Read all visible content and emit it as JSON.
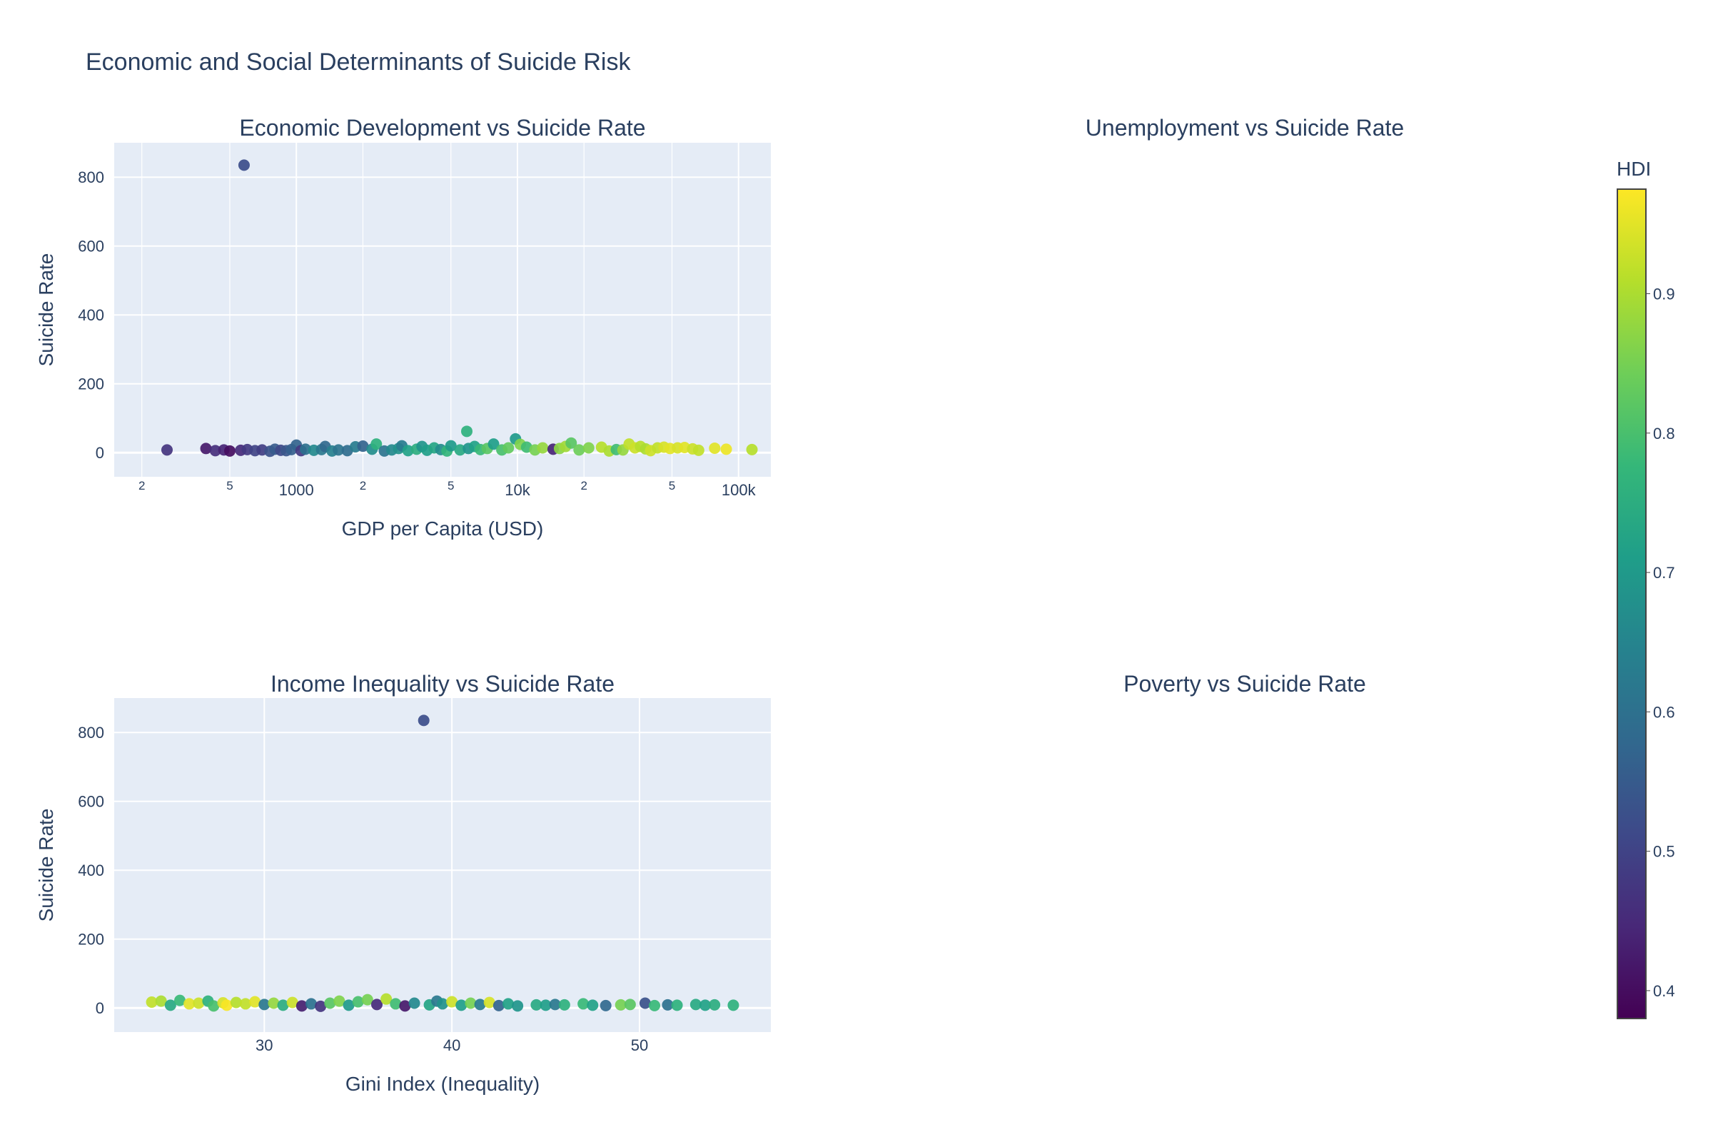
{
  "figure_title": "Economic and Social Determinants of Suicide Risk",
  "colorbar": {
    "title": "HDI",
    "min": 0.38,
    "max": 0.975,
    "ticks": [
      0.4,
      0.5,
      0.6,
      0.7,
      0.8,
      0.9
    ],
    "tick_labels": [
      "0.4",
      "0.5",
      "0.6",
      "0.7",
      "0.8",
      "0.9"
    ],
    "colorscale": [
      "#440154",
      "#482878",
      "#3e4989",
      "#31688e",
      "#26828e",
      "#1f9e89",
      "#35b779",
      "#6ece58",
      "#b5de2b",
      "#fde725"
    ]
  },
  "colors": {
    "plot_bg": "#e5ecf6",
    "grid": "#ffffff",
    "text": "#2a3f5f"
  },
  "chart_data": [
    {
      "id": "gdp",
      "type": "scatter",
      "title": "Economic Development vs Suicide Rate",
      "xlabel": "GDP per Capita (USD)",
      "ylabel": "Suicide Rate",
      "x_scale": "log",
      "xlim": [
        150,
        140000
      ],
      "ylim": [
        -70,
        900
      ],
      "y_ticks": [
        0,
        200,
        400,
        600,
        800
      ],
      "y_tick_labels": [
        "0",
        "200",
        "400",
        "600",
        "800"
      ],
      "x_major_ticks": [
        1000,
        10000,
        100000
      ],
      "x_major_labels": [
        "1000",
        "10k",
        "100k"
      ],
      "x_minor_ticks": [
        200,
        500,
        2000,
        5000,
        20000,
        50000
      ],
      "x_minor_labels": [
        "2",
        "5",
        "2",
        "5",
        "2",
        "5"
      ],
      "points": [
        [
          260,
          8,
          0.47
        ],
        [
          390,
          12,
          0.42
        ],
        [
          430,
          6,
          0.46
        ],
        [
          470,
          8,
          0.44
        ],
        [
          500,
          5,
          0.4
        ],
        [
          560,
          7,
          0.45
        ],
        [
          580,
          835,
          0.52
        ],
        [
          600,
          9,
          0.48
        ],
        [
          650,
          6,
          0.5
        ],
        [
          700,
          8,
          0.49
        ],
        [
          760,
          4,
          0.53
        ],
        [
          800,
          10,
          0.55
        ],
        [
          850,
          7,
          0.51
        ],
        [
          900,
          6,
          0.54
        ],
        [
          950,
          9,
          0.56
        ],
        [
          1000,
          22,
          0.57
        ],
        [
          1050,
          6,
          0.48
        ],
        [
          1100,
          10,
          0.6
        ],
        [
          1200,
          7,
          0.66
        ],
        [
          1300,
          9,
          0.62
        ],
        [
          1350,
          18,
          0.58
        ],
        [
          1450,
          5,
          0.64
        ],
        [
          1550,
          8,
          0.61
        ],
        [
          1700,
          6,
          0.59
        ],
        [
          1850,
          17,
          0.63
        ],
        [
          2000,
          19,
          0.57
        ],
        [
          2200,
          10,
          0.67
        ],
        [
          2300,
          25,
          0.76
        ],
        [
          2500,
          5,
          0.61
        ],
        [
          2700,
          8,
          0.66
        ],
        [
          2900,
          12,
          0.68
        ],
        [
          3000,
          20,
          0.63
        ],
        [
          3200,
          6,
          0.72
        ],
        [
          3500,
          10,
          0.75
        ],
        [
          3700,
          18,
          0.69
        ],
        [
          3900,
          7,
          0.71
        ],
        [
          4200,
          14,
          0.73
        ],
        [
          4500,
          9,
          0.67
        ],
        [
          4800,
          5,
          0.77
        ],
        [
          5000,
          20,
          0.7
        ],
        [
          5500,
          8,
          0.74
        ],
        [
          5900,
          62,
          0.76
        ],
        [
          6000,
          12,
          0.69
        ],
        [
          6400,
          18,
          0.72
        ],
        [
          6800,
          9,
          0.78
        ],
        [
          7300,
          12,
          0.82
        ],
        [
          7800,
          25,
          0.71
        ],
        [
          8500,
          8,
          0.8
        ],
        [
          9100,
          14,
          0.83
        ],
        [
          9800,
          40,
          0.7
        ],
        [
          10300,
          24,
          0.86
        ],
        [
          11000,
          16,
          0.79
        ],
        [
          12000,
          8,
          0.85
        ],
        [
          13000,
          14,
          0.88
        ],
        [
          14500,
          10,
          0.44
        ],
        [
          15500,
          12,
          0.87
        ],
        [
          16500,
          18,
          0.89
        ],
        [
          17500,
          28,
          0.82
        ],
        [
          19000,
          8,
          0.84
        ],
        [
          21000,
          14,
          0.86
        ],
        [
          24000,
          16,
          0.91
        ],
        [
          26000,
          5,
          0.9
        ],
        [
          28000,
          9,
          0.79
        ],
        [
          30000,
          8,
          0.88
        ],
        [
          32000,
          25,
          0.92
        ],
        [
          34000,
          14,
          0.93
        ],
        [
          36000,
          18,
          0.91
        ],
        [
          38000,
          11,
          0.9
        ],
        [
          40000,
          6,
          0.93
        ],
        [
          43000,
          14,
          0.92
        ],
        [
          46000,
          16,
          0.94
        ],
        [
          49000,
          12,
          0.95
        ],
        [
          53000,
          14,
          0.94
        ],
        [
          57000,
          15,
          0.95
        ],
        [
          62000,
          11,
          0.93
        ],
        [
          66000,
          7,
          0.92
        ],
        [
          78000,
          13,
          0.95
        ],
        [
          88000,
          10,
          0.96
        ],
        [
          115000,
          9,
          0.91
        ]
      ]
    },
    {
      "id": "gini",
      "type": "scatter",
      "title": "Income Inequality vs Suicide Rate",
      "xlabel": "Gini Index (Inequality)",
      "ylabel": "Suicide Rate",
      "x_scale": "linear",
      "xlim": [
        22,
        57
      ],
      "ylim": [
        -70,
        900
      ],
      "y_ticks": [
        0,
        200,
        400,
        600,
        800
      ],
      "y_tick_labels": [
        "0",
        "200",
        "400",
        "600",
        "800"
      ],
      "x_major_ticks": [
        30,
        40,
        50
      ],
      "x_major_labels": [
        "30",
        "40",
        "50"
      ],
      "points": [
        [
          24,
          17,
          0.92
        ],
        [
          24.5,
          20,
          0.9
        ],
        [
          25,
          8,
          0.74
        ],
        [
          25.5,
          22,
          0.78
        ],
        [
          26,
          12,
          0.95
        ],
        [
          26.5,
          14,
          0.93
        ],
        [
          27,
          20,
          0.76
        ],
        [
          27.3,
          6,
          0.8
        ],
        [
          27.8,
          15,
          0.94
        ],
        [
          28,
          8,
          0.97
        ],
        [
          28.5,
          16,
          0.91
        ],
        [
          29,
          12,
          0.92
        ],
        [
          29.5,
          18,
          0.95
        ],
        [
          30,
          10,
          0.62
        ],
        [
          30.5,
          14,
          0.88
        ],
        [
          31,
          8,
          0.75
        ],
        [
          31.5,
          16,
          0.93
        ],
        [
          32,
          6,
          0.43
        ],
        [
          32.5,
          12,
          0.6
        ],
        [
          33,
          5,
          0.47
        ],
        [
          33.5,
          14,
          0.82
        ],
        [
          34,
          20,
          0.86
        ],
        [
          34.5,
          8,
          0.7
        ],
        [
          35,
          18,
          0.8
        ],
        [
          35.5,
          24,
          0.85
        ],
        [
          36,
          10,
          0.45
        ],
        [
          36.5,
          26,
          0.91
        ],
        [
          37,
          12,
          0.79
        ],
        [
          37.5,
          6,
          0.42
        ],
        [
          38,
          14,
          0.66
        ],
        [
          38.5,
          835,
          0.52
        ],
        [
          38.8,
          9,
          0.73
        ],
        [
          39.2,
          20,
          0.62
        ],
        [
          39.5,
          12,
          0.68
        ],
        [
          40,
          18,
          0.93
        ],
        [
          40.5,
          8,
          0.71
        ],
        [
          41,
          14,
          0.85
        ],
        [
          41.5,
          10,
          0.63
        ],
        [
          42,
          16,
          0.94
        ],
        [
          42.5,
          7,
          0.57
        ],
        [
          43,
          12,
          0.72
        ],
        [
          43.5,
          6,
          0.69
        ],
        [
          44.5,
          9,
          0.74
        ],
        [
          45,
          8,
          0.71
        ],
        [
          45.5,
          10,
          0.62
        ],
        [
          46,
          9,
          0.76
        ],
        [
          47,
          12,
          0.78
        ],
        [
          47.5,
          8,
          0.72
        ],
        [
          48.2,
          7,
          0.58
        ],
        [
          49,
          9,
          0.85
        ],
        [
          49.5,
          10,
          0.82
        ],
        [
          50.3,
          14,
          0.53
        ],
        [
          50.8,
          7,
          0.78
        ],
        [
          51.5,
          9,
          0.6
        ],
        [
          52,
          8,
          0.76
        ],
        [
          53,
          10,
          0.74
        ],
        [
          53.5,
          8,
          0.72
        ],
        [
          54,
          9,
          0.75
        ],
        [
          55,
          8,
          0.76
        ]
      ]
    },
    {
      "id": "unemployment",
      "type": "scatter",
      "title": "Unemployment vs Suicide Rate",
      "points": []
    },
    {
      "id": "poverty",
      "type": "scatter",
      "title": "Poverty vs Suicide Rate",
      "points": []
    }
  ]
}
